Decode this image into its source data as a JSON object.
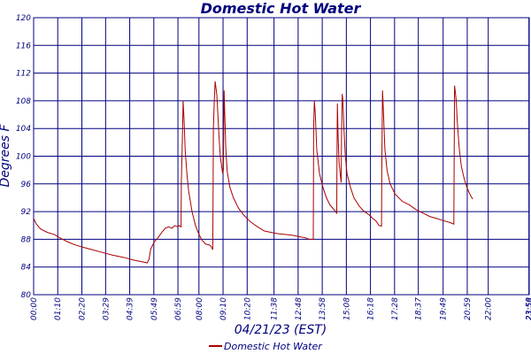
{
  "chart_data": {
    "type": "line",
    "title": "Domestic Hot Water",
    "xlabel": "04/21/23 (EST)",
    "ylabel": "Degrees F",
    "ylim": [
      80,
      120
    ],
    "yticks": [
      80,
      84,
      88,
      92,
      96,
      100,
      104,
      108,
      112,
      116,
      120
    ],
    "ytick_labels": [
      "80",
      "84",
      "88",
      "92",
      "96",
      "100",
      "104",
      "108",
      "112",
      "116",
      "120"
    ],
    "xlim_minutes": [
      0,
      1439
    ],
    "xtick_labels": [
      "00:00",
      "01:10",
      "02:20",
      "03:29",
      "04:39",
      "05:49",
      "06:59",
      "08:00",
      "09:10",
      "10:20",
      "11:38",
      "12:48",
      "13:58",
      "15:08",
      "16:18",
      "17:28",
      "18:37",
      "19:49",
      "20:59",
      "22:00",
      "23:58",
      "23:59"
    ],
    "xtick_minutes": [
      0,
      70,
      140,
      209,
      279,
      349,
      419,
      480,
      550,
      620,
      698,
      768,
      838,
      908,
      978,
      1048,
      1117,
      1189,
      1259,
      1320,
      1438,
      1439
    ],
    "grid": true,
    "legend_position": "bottom-center",
    "series": [
      {
        "name": "Domestic Hot Water",
        "color": "#aa0000",
        "points": [
          [
            0,
            91.0
          ],
          [
            8,
            90.2
          ],
          [
            20,
            89.5
          ],
          [
            40,
            89.0
          ],
          [
            60,
            88.7
          ],
          [
            80,
            88.1
          ],
          [
            100,
            87.6
          ],
          [
            120,
            87.2
          ],
          [
            140,
            86.9
          ],
          [
            170,
            86.5
          ],
          [
            200,
            86.1
          ],
          [
            230,
            85.7
          ],
          [
            260,
            85.4
          ],
          [
            290,
            85.0
          ],
          [
            310,
            84.8
          ],
          [
            330,
            84.6
          ],
          [
            335,
            85.1
          ],
          [
            340,
            86.6
          ],
          [
            350,
            87.6
          ],
          [
            362,
            88.3
          ],
          [
            372,
            89.0
          ],
          [
            382,
            89.6
          ],
          [
            392,
            89.8
          ],
          [
            402,
            89.6
          ],
          [
            410,
            90.0
          ],
          [
            418,
            89.8
          ],
          [
            422,
            90.0
          ],
          [
            428,
            89.8
          ],
          [
            429,
            96.0
          ],
          [
            433,
            105.0
          ],
          [
            434,
            108.0
          ],
          [
            437,
            105.0
          ],
          [
            440,
            101.0
          ],
          [
            445,
            97.5
          ],
          [
            450,
            95.0
          ],
          [
            460,
            92.0
          ],
          [
            470,
            90.0
          ],
          [
            480,
            88.7
          ],
          [
            490,
            87.8
          ],
          [
            500,
            87.3
          ],
          [
            510,
            87.2
          ],
          [
            515,
            87.0
          ],
          [
            520,
            86.5
          ],
          [
            521,
            95.0
          ],
          [
            522,
            104.0
          ],
          [
            525,
            108.5
          ],
          [
            527,
            110.8
          ],
          [
            529,
            110.0
          ],
          [
            532,
            108.8
          ],
          [
            535,
            106.0
          ],
          [
            538,
            103.0
          ],
          [
            542,
            100.0
          ],
          [
            546,
            98.5
          ],
          [
            549,
            97.5
          ],
          [
            551,
            98.0
          ],
          [
            552,
            104.0
          ],
          [
            553,
            109.5
          ],
          [
            555,
            106.0
          ],
          [
            558,
            101.0
          ],
          [
            562,
            97.8
          ],
          [
            570,
            95.5
          ],
          [
            580,
            94.0
          ],
          [
            595,
            92.5
          ],
          [
            610,
            91.5
          ],
          [
            630,
            90.5
          ],
          [
            650,
            89.8
          ],
          [
            670,
            89.2
          ],
          [
            690,
            89.0
          ],
          [
            710,
            88.8
          ],
          [
            730,
            88.7
          ],
          [
            750,
            88.6
          ],
          [
            770,
            88.4
          ],
          [
            790,
            88.2
          ],
          [
            800,
            88.0
          ],
          [
            812,
            88.0
          ],
          [
            813,
            104.0
          ],
          [
            815,
            108.0
          ],
          [
            818,
            106.0
          ],
          [
            822,
            101.0
          ],
          [
            830,
            97.5
          ],
          [
            840,
            95.5
          ],
          [
            850,
            94.0
          ],
          [
            860,
            93.0
          ],
          [
            870,
            92.4
          ],
          [
            877,
            92.0
          ],
          [
            880,
            91.7
          ],
          [
            881,
            100.0
          ],
          [
            882,
            107.6
          ],
          [
            884,
            103.0
          ],
          [
            887,
            99.0
          ],
          [
            890,
            97.5
          ],
          [
            893,
            96.2
          ],
          [
            894,
            103.0
          ],
          [
            896,
            109.0
          ],
          [
            898,
            108.0
          ],
          [
            901,
            104.0
          ],
          [
            905,
            100.0
          ],
          [
            910,
            97.5
          ],
          [
            920,
            95.5
          ],
          [
            930,
            94.0
          ],
          [
            945,
            92.8
          ],
          [
            960,
            92.0
          ],
          [
            975,
            91.5
          ],
          [
            985,
            91.0
          ],
          [
            995,
            90.6
          ],
          [
            1003,
            90.0
          ],
          [
            1010,
            89.9
          ],
          [
            1011,
            98.0
          ],
          [
            1013,
            109.5
          ],
          [
            1016,
            106.0
          ],
          [
            1020,
            101.0
          ],
          [
            1026,
            98.0
          ],
          [
            1035,
            96.0
          ],
          [
            1050,
            94.5
          ],
          [
            1070,
            93.5
          ],
          [
            1090,
            93.0
          ],
          [
            1110,
            92.3
          ],
          [
            1130,
            91.8
          ],
          [
            1150,
            91.3
          ],
          [
            1170,
            91.0
          ],
          [
            1190,
            90.7
          ],
          [
            1210,
            90.4
          ],
          [
            1220,
            90.2
          ],
          [
            1221,
            100.0
          ],
          [
            1222,
            110.2
          ],
          [
            1224,
            109.5
          ],
          [
            1227,
            108.0
          ],
          [
            1230,
            105.0
          ],
          [
            1236,
            101.0
          ],
          [
            1242,
            98.5
          ],
          [
            1250,
            96.8
          ],
          [
            1258,
            95.5
          ],
          [
            1264,
            94.8
          ],
          [
            1270,
            94.2
          ],
          [
            1275,
            93.8
          ]
        ]
      }
    ]
  }
}
